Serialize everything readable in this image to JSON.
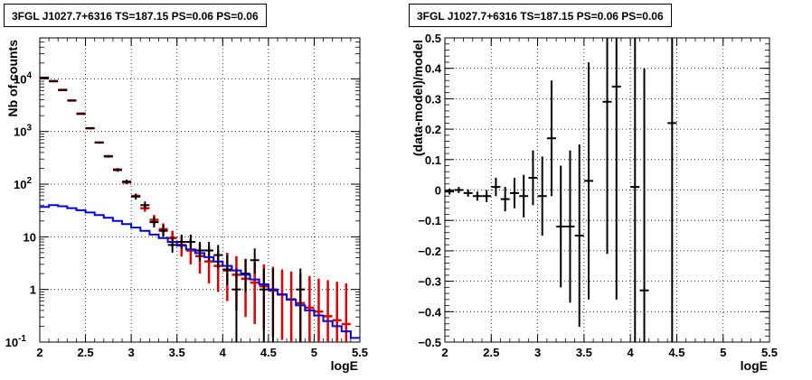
{
  "chart_data": [
    {
      "type": "scatter",
      "title": "3FGL J1027.7+6316 TS=187.15 PS=0.06 PS=0.06",
      "xlabel": "logE",
      "ylabel": "Nb of counts",
      "xlim": [
        2,
        5.5
      ],
      "ylim": [
        0.1,
        60000
      ],
      "y_scale": "log",
      "grid": true,
      "x_ticks": [
        "2",
        "2.5",
        "3",
        "3.5",
        "4",
        "4.5",
        "5",
        "5.5"
      ],
      "y_ticks": [
        {
          "value": 0.1,
          "label": "10",
          "exp": "-1"
        },
        {
          "value": 1,
          "label": "1",
          "exp": ""
        },
        {
          "value": 10,
          "label": "10",
          "exp": ""
        },
        {
          "value": 100,
          "label": "10",
          "exp": "2"
        },
        {
          "value": 1000,
          "label": "10",
          "exp": "3"
        },
        {
          "value": 10000,
          "label": "10",
          "exp": "4"
        }
      ],
      "series": [
        {
          "kind": "model_points",
          "color": "#dd0000",
          "points": [
            {
              "x": 2.05,
              "y": 10500,
              "lo": 10200,
              "hi": 10800
            },
            {
              "x": 2.15,
              "y": 9000,
              "lo": 8700,
              "hi": 9300
            },
            {
              "x": 2.25,
              "y": 6200,
              "lo": 6000,
              "hi": 6450
            },
            {
              "x": 2.35,
              "y": 3900,
              "lo": 3750,
              "hi": 4050
            },
            {
              "x": 2.45,
              "y": 2200,
              "lo": 2100,
              "hi": 2300
            },
            {
              "x": 2.55,
              "y": 1150,
              "lo": 1090,
              "hi": 1210
            },
            {
              "x": 2.65,
              "y": 620,
              "lo": 590,
              "hi": 650
            },
            {
              "x": 2.75,
              "y": 340,
              "lo": 320,
              "hi": 360
            },
            {
              "x": 2.85,
              "y": 190,
              "lo": 178,
              "hi": 202
            },
            {
              "x": 2.95,
              "y": 108,
              "lo": 100,
              "hi": 116
            },
            {
              "x": 3.05,
              "y": 60,
              "lo": 55,
              "hi": 65
            },
            {
              "x": 3.15,
              "y": 35,
              "lo": 30,
              "hi": 41
            },
            {
              "x": 3.25,
              "y": 21,
              "lo": 17,
              "hi": 26
            },
            {
              "x": 3.35,
              "y": 14,
              "lo": 10.5,
              "hi": 18
            },
            {
              "x": 3.45,
              "y": 9.5,
              "lo": 6.5,
              "hi": 13
            },
            {
              "x": 3.55,
              "y": 7,
              "lo": 4.2,
              "hi": 10.5
            },
            {
              "x": 3.65,
              "y": 5.5,
              "lo": 3,
              "hi": 9
            },
            {
              "x": 3.75,
              "y": 4.3,
              "lo": 2,
              "hi": 7.5
            },
            {
              "x": 3.85,
              "y": 3.4,
              "lo": 1.3,
              "hi": 6.5
            },
            {
              "x": 3.95,
              "y": 2.8,
              "lo": 0.9,
              "hi": 5.5
            },
            {
              "x": 4.05,
              "y": 2.3,
              "lo": 0.6,
              "hi": 5
            },
            {
              "x": 4.15,
              "y": 1.9,
              "lo": 0.4,
              "hi": 4.3
            },
            {
              "x": 4.25,
              "y": 1.6,
              "lo": 0.3,
              "hi": 3.8
            },
            {
              "x": 4.35,
              "y": 1.35,
              "lo": 0.22,
              "hi": 3.3
            },
            {
              "x": 4.45,
              "y": 1.15,
              "lo": 0.17,
              "hi": 3
            },
            {
              "x": 4.55,
              "y": 0.95,
              "lo": 0.13,
              "hi": 2.7
            },
            {
              "x": 4.65,
              "y": 0.8,
              "lo": 0.11,
              "hi": 2.4
            },
            {
              "x": 4.75,
              "y": 0.65,
              "lo": 0.1,
              "hi": 2.2
            },
            {
              "x": 4.85,
              "y": 0.55,
              "lo": 0.1,
              "hi": 2
            },
            {
              "x": 4.95,
              "y": 0.45,
              "lo": 0.1,
              "hi": 1.8
            },
            {
              "x": 5.05,
              "y": 0.38,
              "lo": 0.1,
              "hi": 1.6
            },
            {
              "x": 5.15,
              "y": 0.31,
              "lo": 0.1,
              "hi": 1.5
            },
            {
              "x": 5.25,
              "y": 0.26,
              "lo": 0.1,
              "hi": 1.4
            },
            {
              "x": 5.35,
              "y": 0.22,
              "lo": 0.1,
              "hi": 1.3
            }
          ]
        },
        {
          "kind": "data_points",
          "color": "#000000",
          "points": [
            {
              "x": 2.05,
              "y": 10500,
              "lo": 10300,
              "hi": 10700
            },
            {
              "x": 2.15,
              "y": 9100,
              "lo": 8900,
              "hi": 9300
            },
            {
              "x": 2.25,
              "y": 6100,
              "lo": 5950,
              "hi": 6250
            },
            {
              "x": 2.35,
              "y": 3850,
              "lo": 3750,
              "hi": 3950
            },
            {
              "x": 2.45,
              "y": 2150,
              "lo": 2100,
              "hi": 2200
            },
            {
              "x": 2.55,
              "y": 1160,
              "lo": 1125,
              "hi": 1195
            },
            {
              "x": 2.65,
              "y": 615,
              "lo": 590,
              "hi": 640
            },
            {
              "x": 2.75,
              "y": 335,
              "lo": 318,
              "hi": 352
            },
            {
              "x": 2.85,
              "y": 185,
              "lo": 172,
              "hi": 198
            },
            {
              "x": 2.95,
              "y": 112,
              "lo": 102,
              "hi": 122
            },
            {
              "x": 3.05,
              "y": 58,
              "lo": 51,
              "hi": 66
            },
            {
              "x": 3.15,
              "y": 40,
              "lo": 34,
              "hi": 47
            },
            {
              "x": 3.25,
              "y": 19,
              "lo": 15,
              "hi": 24
            },
            {
              "x": 3.35,
              "y": 13,
              "lo": 10,
              "hi": 17
            },
            {
              "x": 3.45,
              "y": 7,
              "lo": 5,
              "hi": 10
            },
            {
              "x": 3.55,
              "y": 8,
              "lo": 6,
              "hi": 11
            },
            {
              "x": 3.65,
              "y": 8,
              "lo": 6,
              "hi": 11
            },
            {
              "x": 3.75,
              "y": 5.5,
              "lo": 3.5,
              "hi": 8
            },
            {
              "x": 3.85,
              "y": 5.5,
              "lo": 3.5,
              "hi": 8
            },
            {
              "x": 3.95,
              "y": 4.5,
              "lo": 2.5,
              "hi": 7
            },
            {
              "x": 4.05,
              "y": 2.4,
              "lo": 1.2,
              "hi": 4.5
            },
            {
              "x": 4.15,
              "y": 1,
              "lo": 0.1,
              "hi": 2.5
            },
            {
              "x": 4.25,
              "y": 2,
              "lo": 0.9,
              "hi": 3.8
            },
            {
              "x": 4.35,
              "y": 3.6,
              "lo": 2,
              "hi": 6
            },
            {
              "x": 4.45,
              "y": 1,
              "lo": 0.1,
              "hi": 2.5
            },
            {
              "x": 4.55,
              "y": 1,
              "lo": 0.1,
              "hi": 2.5
            },
            {
              "x": 4.85,
              "y": 1,
              "lo": 0.1,
              "hi": 2.5
            }
          ]
        },
        {
          "kind": "background_histogram",
          "color": "#0000dd",
          "bin_width": 0.1,
          "bins": [
            {
              "x": 2.0,
              "y": 37
            },
            {
              "x": 2.1,
              "y": 40
            },
            {
              "x": 2.2,
              "y": 38
            },
            {
              "x": 2.3,
              "y": 35
            },
            {
              "x": 2.4,
              "y": 32
            },
            {
              "x": 2.5,
              "y": 29
            },
            {
              "x": 2.6,
              "y": 26
            },
            {
              "x": 2.7,
              "y": 23
            },
            {
              "x": 2.8,
              "y": 20
            },
            {
              "x": 2.9,
              "y": 17.5
            },
            {
              "x": 3.0,
              "y": 15
            },
            {
              "x": 3.1,
              "y": 13
            },
            {
              "x": 3.2,
              "y": 11
            },
            {
              "x": 3.3,
              "y": 9.5
            },
            {
              "x": 3.4,
              "y": 8
            },
            {
              "x": 3.5,
              "y": 6.8
            },
            {
              "x": 3.6,
              "y": 5.8
            },
            {
              "x": 3.7,
              "y": 4.9
            },
            {
              "x": 3.8,
              "y": 4.1
            },
            {
              "x": 3.9,
              "y": 3.4
            },
            {
              "x": 4.0,
              "y": 2.8
            },
            {
              "x": 4.1,
              "y": 2.3
            },
            {
              "x": 4.2,
              "y": 1.9
            },
            {
              "x": 4.3,
              "y": 1.55
            },
            {
              "x": 4.4,
              "y": 1.25
            },
            {
              "x": 4.5,
              "y": 1.0
            },
            {
              "x": 4.6,
              "y": 0.8
            },
            {
              "x": 4.7,
              "y": 0.64
            },
            {
              "x": 4.8,
              "y": 0.5
            },
            {
              "x": 4.9,
              "y": 0.4
            },
            {
              "x": 5.0,
              "y": 0.32
            },
            {
              "x": 5.1,
              "y": 0.25
            },
            {
              "x": 5.2,
              "y": 0.2
            },
            {
              "x": 5.3,
              "y": 0.16
            },
            {
              "x": 5.4,
              "y": 0.12
            }
          ]
        }
      ]
    },
    {
      "type": "scatter",
      "title": "3FGL J1027.7+6316 TS=187.15 PS=0.06 PS=0.06",
      "xlabel": "logE",
      "ylabel": "(data-model)/model",
      "xlim": [
        2,
        5.5
      ],
      "ylim": [
        -0.5,
        0.5
      ],
      "y_scale": "linear",
      "grid": true,
      "x_ticks": [
        "2",
        "2.5",
        "3",
        "3.5",
        "4",
        "4.5",
        "5",
        "5.5"
      ],
      "y_ticks": [
        {
          "value": -0.5,
          "label": "−0.5"
        },
        {
          "value": -0.4,
          "label": "−0.4"
        },
        {
          "value": -0.3,
          "label": "−0.3"
        },
        {
          "value": -0.2,
          "label": "−0.2"
        },
        {
          "value": -0.1,
          "label": "−0.1"
        },
        {
          "value": 0,
          "label": "0"
        },
        {
          "value": 0.1,
          "label": "0.1"
        },
        {
          "value": 0.2,
          "label": "0.2"
        },
        {
          "value": 0.3,
          "label": "0.3"
        },
        {
          "value": 0.4,
          "label": "0.4"
        },
        {
          "value": 0.5,
          "label": "0.5"
        }
      ],
      "series": [
        {
          "kind": "residuals",
          "color": "#000000",
          "points": [
            {
              "x": 2.05,
              "y": -0.005,
              "err": 0.01
            },
            {
              "x": 2.15,
              "y": 0.0,
              "err": 0.01
            },
            {
              "x": 2.25,
              "y": -0.01,
              "err": 0.012
            },
            {
              "x": 2.35,
              "y": -0.02,
              "err": 0.015
            },
            {
              "x": 2.45,
              "y": -0.02,
              "err": 0.02
            },
            {
              "x": 2.55,
              "y": 0.01,
              "err": 0.03
            },
            {
              "x": 2.65,
              "y": -0.03,
              "err": 0.04
            },
            {
              "x": 2.75,
              "y": -0.01,
              "err": 0.05
            },
            {
              "x": 2.85,
              "y": -0.02,
              "err": 0.07
            },
            {
              "x": 2.95,
              "y": 0.04,
              "err": 0.09
            },
            {
              "x": 3.05,
              "y": -0.02,
              "err": 0.13
            },
            {
              "x": 3.15,
              "y": 0.17,
              "err": 0.19
            },
            {
              "x": 3.25,
              "y": -0.12,
              "err": 0.2
            },
            {
              "x": 3.35,
              "y": -0.12,
              "err": 0.25
            },
            {
              "x": 3.45,
              "y": -0.15,
              "err": 0.3
            },
            {
              "x": 3.55,
              "y": 0.03,
              "err": 0.39
            },
            {
              "x": 3.75,
              "y": 0.29,
              "err": 0.5
            },
            {
              "x": 3.85,
              "y": 0.34,
              "err": 0.7
            },
            {
              "x": 4.05,
              "y": 0.01,
              "err": 1.0
            },
            {
              "x": 4.15,
              "y": -0.33,
              "err": 0.73
            },
            {
              "x": 4.45,
              "y": 0.22,
              "err": 1.0
            }
          ]
        }
      ]
    }
  ]
}
